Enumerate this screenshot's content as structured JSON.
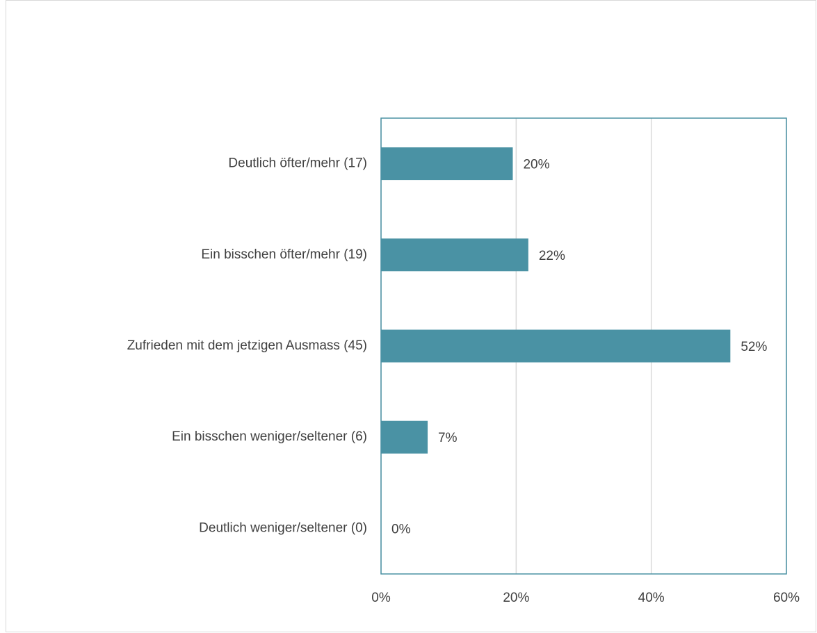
{
  "chart_data": {
    "type": "bar",
    "orientation": "horizontal",
    "categories": [
      "Deutlich öfter/mehr (17)",
      "Ein bisschen öfter/mehr (19)",
      "Zufrieden mit dem jetzigen Ausmass (45)",
      "Ein bisschen weniger/seltener (6)",
      "Deutlich weniger/seltener (0)"
    ],
    "values": [
      19.5,
      21.8,
      51.7,
      6.9,
      0
    ],
    "value_labels": [
      "20%",
      "22%",
      "52%",
      "7%",
      "0%"
    ],
    "color": "#4a92a4",
    "xlim": [
      0,
      60
    ],
    "xticks": [
      {
        "value": 0,
        "label": "0%"
      },
      {
        "value": 20,
        "label": "20%"
      },
      {
        "value": 40,
        "label": "40%"
      },
      {
        "value": 60,
        "label": "60%"
      }
    ],
    "grid": true
  }
}
